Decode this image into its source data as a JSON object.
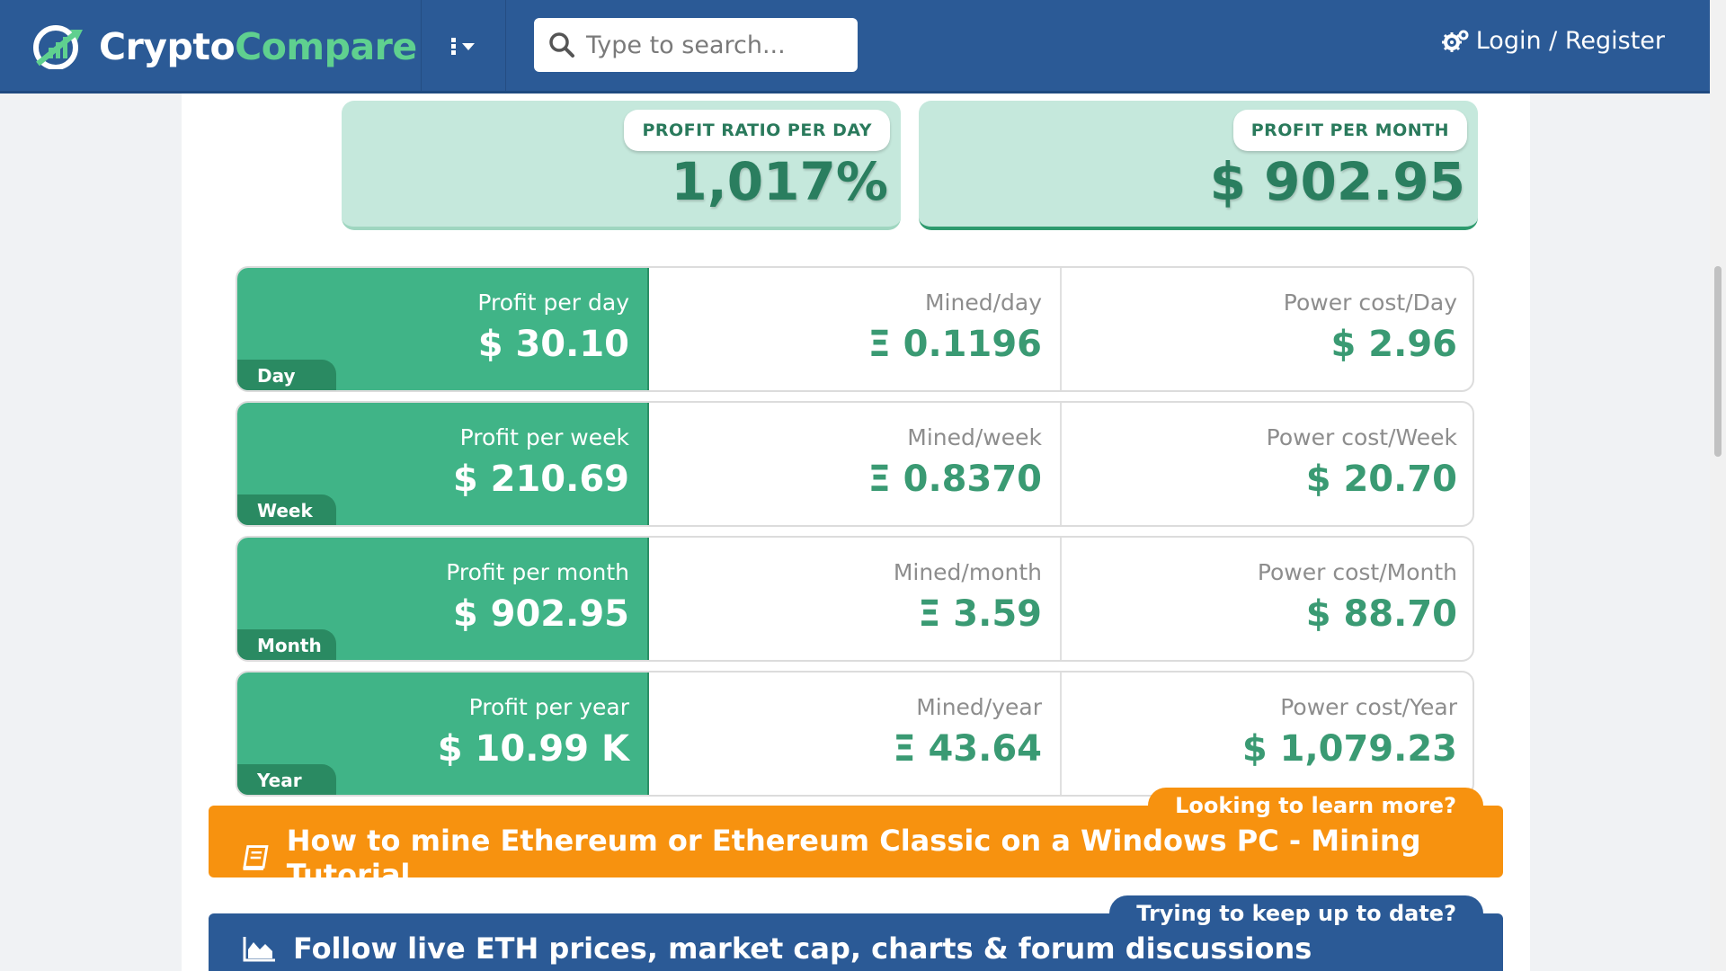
{
  "header": {
    "logo": {
      "part1": "Crypto",
      "part2": "Compare"
    },
    "search": {
      "placeholder": "Type to search..."
    },
    "login_label": "Login / Register"
  },
  "metrics": {
    "profit_ratio": {
      "label": "PROFIT RATIO PER DAY",
      "value": "1,017%"
    },
    "profit_month": {
      "label": "PROFIT PER MONTH",
      "value": "$ 902.95"
    }
  },
  "rows": [
    {
      "tag": "Day",
      "profit_label": "Profit per day",
      "profit": "$ 30.10",
      "mined_label": "Mined/day",
      "mined": "Ξ 0.1196",
      "power_label": "Power cost/Day",
      "power": "$ 2.96"
    },
    {
      "tag": "Week",
      "profit_label": "Profit per week",
      "profit": "$ 210.69",
      "mined_label": "Mined/week",
      "mined": "Ξ 0.8370",
      "power_label": "Power cost/Week",
      "power": "$ 20.70"
    },
    {
      "tag": "Month",
      "profit_label": "Profit per month",
      "profit": "$ 902.95",
      "mined_label": "Mined/month",
      "mined": "Ξ 3.59",
      "power_label": "Power cost/Month",
      "power": "$ 88.70"
    },
    {
      "tag": "Year",
      "profit_label": "Profit per year",
      "profit": "$ 10.99 K",
      "mined_label": "Mined/year",
      "mined": "Ξ 43.64",
      "power_label": "Power cost/Year",
      "power": "$ 1,079.23"
    }
  ],
  "banners": {
    "tutorial": {
      "tab": "Looking to learn more?",
      "text": "How to mine Ethereum or Ethereum Classic on a Windows PC - Mining Tutorial",
      "icon": "book-icon"
    },
    "follow": {
      "tab": "Trying to keep up to date?",
      "text": "Follow live ETH prices, market cap, charts & forum discussions",
      "icon": "area-chart-icon"
    }
  },
  "colors": {
    "header_bg": "#2b5a96",
    "accent_green": "#40b487",
    "accent_orange": "#f7920f"
  }
}
